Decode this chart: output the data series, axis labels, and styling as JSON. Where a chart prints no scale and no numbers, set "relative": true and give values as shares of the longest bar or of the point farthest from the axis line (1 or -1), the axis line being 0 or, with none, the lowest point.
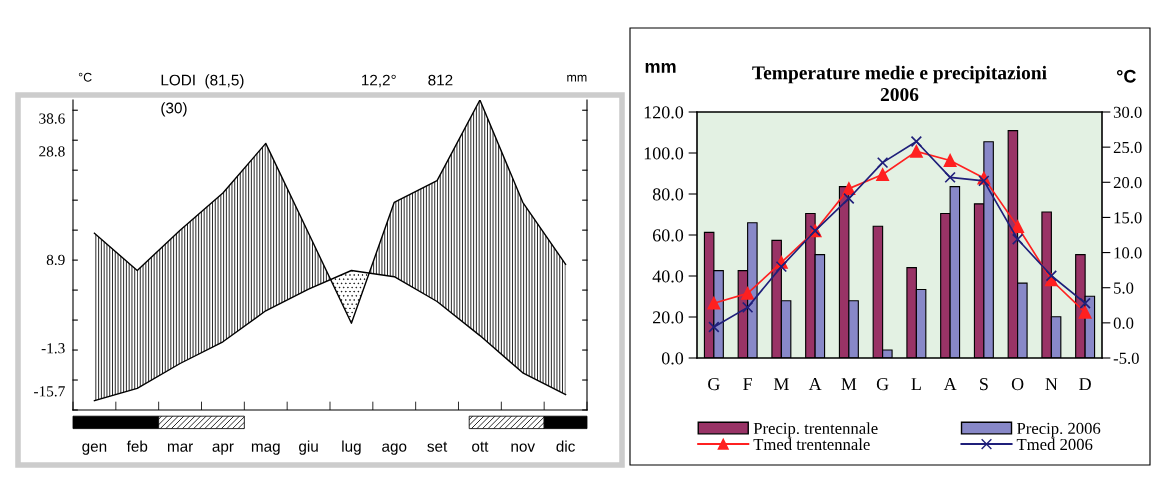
{
  "chart_data": [
    {
      "type": "line",
      "relative": true,
      "categories": [
        "gen",
        "feb",
        "mar",
        "apr",
        "mag",
        "giu",
        "lug",
        "ago",
        "set",
        "ott",
        "nov",
        "dic"
      ],
      "series": [
        {
          "color": "#000000",
          "values": [
            0.57,
            0.45,
            0.58,
            0.7,
            0.86,
            0.57,
            0.28,
            0.67,
            0.74,
            1.0,
            0.67,
            0.47
          ]
        },
        {
          "color": "#000000",
          "values": [
            0.03,
            0.07,
            0.15,
            0.22,
            0.32,
            0.39,
            0.45,
            0.43,
            0.35,
            0.24,
            0.12,
            0.05
          ]
        }
      ],
      "ylabel": "°C",
      "y2label": "mm",
      "annotations": [
        "LODI  (81,5)",
        "(30)",
        "12,2°",
        "812",
        "38.6",
        "28.8",
        "8.9",
        "-1.3",
        "-15.7"
      ],
      "marker": "none",
      "grid": false,
      "legend": false
    },
    {
      "type": "bar",
      "title": "Temperature medie e precipitazioni\n2006",
      "ylabel": "mm",
      "y2label": "°C",
      "categories": [
        "G",
        "F",
        "M",
        "A",
        "M",
        "G",
        "L",
        "A",
        "S",
        "O",
        "N",
        "D"
      ],
      "series": [
        {
          "name": "Precip. trentennale",
          "color": "#993366",
          "values": [
            61.3,
            42.6,
            57.4,
            70.5,
            83.6,
            64.3,
            44.1,
            70.5,
            75.2,
            110.9,
            71.2,
            50.4
          ]
        },
        {
          "name": "Precip. 2006",
          "color": "#8888c8",
          "values": [
            42.6,
            66.0,
            27.9,
            50.4,
            27.9,
            3.9,
            33.4,
            83.6,
            105.5,
            36.5,
            20.1,
            30.1
          ]
        },
        {
          "name": "Tmed trentennale",
          "type": "line",
          "axis": "y2",
          "marker": "triangle",
          "color": "#ff2020",
          "values": [
            2.8,
            4.2,
            8.6,
            13.1,
            19.1,
            21.1,
            24.4,
            23.1,
            20.6,
            13.7,
            6.1,
            1.5
          ]
        },
        {
          "name": "Tmed 2006",
          "type": "line",
          "axis": "y2",
          "marker": "cross",
          "color": "#1f1f7a",
          "values": [
            -0.6,
            2.2,
            8.0,
            13.1,
            17.7,
            22.8,
            25.8,
            20.7,
            20.2,
            11.9,
            6.7,
            2.8
          ]
        }
      ],
      "ylim": [
        0,
        120
      ],
      "yticks": [
        {
          "value": 0,
          "label": "0.0"
        },
        {
          "value": 20,
          "label": "20.0"
        },
        {
          "value": 40,
          "label": "40.0"
        },
        {
          "value": 60,
          "label": "60.0"
        },
        {
          "value": 80,
          "label": "80.0"
        },
        {
          "value": 100,
          "label": "100.0"
        },
        {
          "value": 120,
          "label": "120.0"
        }
      ],
      "y2lim": [
        -5,
        30
      ],
      "y2ticks": [
        {
          "value": -5,
          "label": "-5.0"
        },
        {
          "value": 0,
          "label": "0.0"
        },
        {
          "value": 5,
          "label": "5.0"
        },
        {
          "value": 10,
          "label": "10.0"
        },
        {
          "value": 15,
          "label": "15.0"
        },
        {
          "value": 20,
          "label": "20.0"
        },
        {
          "value": 25,
          "label": "25.0"
        },
        {
          "value": 30,
          "label": "30.0"
        }
      ],
      "grid": false,
      "legend": "bottom"
    }
  ]
}
